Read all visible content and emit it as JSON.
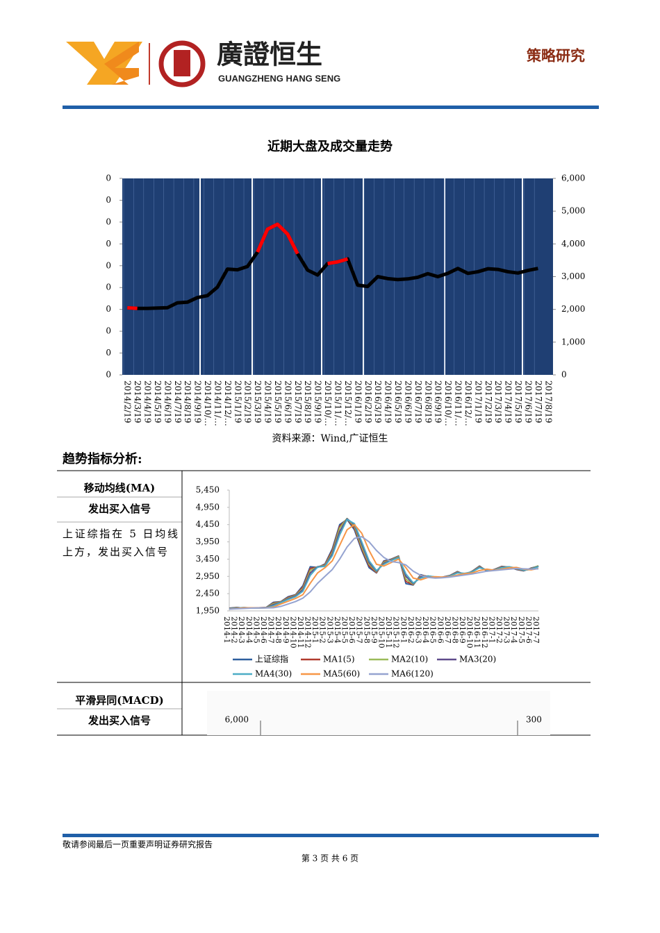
{
  "header": {
    "company_cn": "廣證恒生",
    "company_en": "GUANGZHENG HANG SENG",
    "section": "策略研究"
  },
  "chart_data": [
    {
      "type": "line",
      "title": "近期大盘及成交量走势",
      "categories": [
        "2014/2/19",
        "2014/3/19",
        "2014/4/19",
        "2014/5/19",
        "2014/6/19",
        "2014/7/19",
        "2014/8/19",
        "2014/9/19",
        "2014/10/…",
        "2014/11/…",
        "2014/12/…",
        "2015/1/19",
        "2015/2/19",
        "2015/3/19",
        "2015/4/19",
        "2015/5/19",
        "2015/6/19",
        "2015/7/19",
        "2015/8/19",
        "2015/9/19",
        "2015/10/…",
        "2015/11/…",
        "2015/12/…",
        "2016/1/19",
        "2016/2/19",
        "2016/3/19",
        "2016/4/19",
        "2016/5/19",
        "2016/6/19",
        "2016/7/19",
        "2016/8/19",
        "2016/9/19",
        "2016/10/…",
        "2016/11/…",
        "2016/12/…",
        "2017/1/19",
        "2017/2/19",
        "2017/3/19",
        "2017/4/19",
        "2017/5/19",
        "2017/6/19",
        "2017/7/19",
        "2017/8/19"
      ],
      "series": [
        {
          "color": "#000000",
          "axis": "y2",
          "values": [
            2050,
            2030,
            2030,
            2040,
            2050,
            2200,
            2220,
            2360,
            2420,
            2680,
            3230,
            3210,
            3310,
            3750,
            4450,
            4600,
            4300,
            3700,
            3200,
            3050,
            3400,
            3450,
            3540,
            2740,
            2700,
            3000,
            2940,
            2910,
            2930,
            2980,
            3090,
            3000,
            3100,
            3250,
            3100,
            3150,
            3240,
            3220,
            3150,
            3110,
            3190,
            3250,
            null
          ]
        },
        {
          "color": "#ff0000",
          "axis": "y2",
          "values": [
            2050,
            2030,
            null,
            null,
            null,
            null,
            null,
            null,
            null,
            null,
            null,
            null,
            null,
            3750,
            4450,
            4600,
            4300,
            3700,
            null,
            null,
            3400,
            3450,
            3540,
            null,
            null,
            null,
            null,
            null,
            null,
            null,
            null,
            null,
            null,
            null,
            null,
            null,
            null,
            null,
            null,
            null,
            null,
            null,
            null
          ]
        }
      ],
      "ylim": [
        0,
        9
      ],
      "yticks": [
        {
          "value": 0,
          "label": "0"
        },
        {
          "value": 1,
          "label": "0"
        },
        {
          "value": 2,
          "label": "0"
        },
        {
          "value": 3,
          "label": "0"
        },
        {
          "value": 4,
          "label": "0"
        },
        {
          "value": 5,
          "label": "0"
        },
        {
          "value": 6,
          "label": "0"
        },
        {
          "value": 7,
          "label": "0"
        },
        {
          "value": 8,
          "label": "0"
        },
        {
          "value": 9,
          "label": "0"
        }
      ],
      "y2lim": [
        0,
        6000
      ],
      "y2ticks": [
        0,
        {
          "value": 1000,
          "label": "1,000"
        },
        {
          "value": 2000,
          "label": "2,000"
        },
        {
          "value": 3000,
          "label": "3,000"
        },
        {
          "value": 4000,
          "label": "4,000"
        },
        {
          "value": 5000,
          "label": "5,000"
        },
        {
          "value": 6000,
          "label": "6,000"
        }
      ],
      "background": "#1f3f73"
    },
    {
      "type": "line",
      "categories": [
        "2014-1",
        "2014-2",
        "2014-3",
        "2014-4",
        "2014-5",
        "2014-6",
        "2014-7",
        "2014-8",
        "2014-9",
        "2014-10",
        "2014-11",
        "2014-12",
        "2015-1",
        "2015-2",
        "2015-3",
        "2015-4",
        "2015-5",
        "2015-6",
        "2015-7",
        "2015-8",
        "2015-9",
        "2015-10",
        "2015-11",
        "2015-12",
        "2016-1",
        "2016-2",
        "2016-3",
        "2016-4",
        "2016-5",
        "2016-6",
        "2016-7",
        "2016-8",
        "2016-9",
        "2016-10",
        "2016-11",
        "2016-12",
        "2017-1",
        "2017-2",
        "2017-3",
        "2017-4",
        "2017-5",
        "2017-6",
        "2017-7"
      ],
      "series": [
        {
          "name": "上证综指",
          "color": "#2e5f9e",
          "values": [
            2030,
            2050,
            2030,
            2030,
            2040,
            2050,
            2200,
            2220,
            2360,
            2420,
            2680,
            3230,
            3210,
            3310,
            3750,
            4450,
            4600,
            4300,
            3700,
            3200,
            3050,
            3400,
            3450,
            3540,
            2740,
            2700,
            3000,
            2940,
            2910,
            2930,
            2980,
            3090,
            3000,
            3100,
            3250,
            3100,
            3150,
            3240,
            3220,
            3150,
            3110,
            3190,
            3250
          ]
        },
        {
          "name": "MA1(5)",
          "color": "#b03a2e",
          "values": [
            2025,
            2045,
            2035,
            2030,
            2040,
            2045,
            2180,
            2215,
            2340,
            2410,
            2640,
            3180,
            3220,
            3290,
            3700,
            4400,
            4620,
            4350,
            3750,
            3250,
            3060,
            3380,
            3440,
            3530,
            2800,
            2710,
            2980,
            2950,
            2920,
            2925,
            2975,
            3080,
            3010,
            3095,
            3240,
            3110,
            3145,
            3230,
            3225,
            3160,
            3115,
            3180,
            3240
          ]
        },
        {
          "name": "MA2(10)",
          "color": "#9bbb59",
          "values": [
            2020,
            2040,
            2040,
            2030,
            2035,
            2045,
            2160,
            2210,
            2320,
            2400,
            2600,
            3120,
            3230,
            3270,
            3650,
            4350,
            4630,
            4400,
            3800,
            3300,
            3080,
            3360,
            3430,
            3520,
            2870,
            2720,
            2960,
            2955,
            2925,
            2920,
            2970,
            3070,
            3020,
            3090,
            3230,
            3120,
            3140,
            3220,
            3225,
            3170,
            3120,
            3170,
            3260
          ]
        },
        {
          "name": "MA3(20)",
          "color": "#5f4b8b",
          "values": [
            2015,
            2035,
            2045,
            2032,
            2032,
            2042,
            2130,
            2200,
            2300,
            2380,
            2560,
            3050,
            3230,
            3250,
            3600,
            4250,
            4620,
            4450,
            3880,
            3350,
            3100,
            3330,
            3420,
            3500,
            2950,
            2740,
            2930,
            2960,
            2930,
            2918,
            2965,
            3060,
            3030,
            3085,
            3215,
            3130,
            3135,
            3210,
            3228,
            3180,
            3125,
            3160,
            3240
          ]
        },
        {
          "name": "MA4(30)",
          "color": "#4bacc6",
          "values": [
            2010,
            2030,
            2048,
            2035,
            2030,
            2040,
            2100,
            2190,
            2280,
            2360,
            2520,
            2980,
            3220,
            3240,
            3550,
            4150,
            4600,
            4480,
            3950,
            3400,
            3120,
            3300,
            3410,
            3490,
            3020,
            2760,
            2900,
            2960,
            2935,
            2917,
            2960,
            3050,
            3040,
            3080,
            3200,
            3140,
            3130,
            3200,
            3230,
            3190,
            3130,
            3150,
            3230
          ]
        },
        {
          "name": "MA5(60)",
          "color": "#f79646",
          "values": [
            2000,
            2020,
            2040,
            2040,
            2035,
            2038,
            2060,
            2150,
            2230,
            2310,
            2420,
            2750,
            3050,
            3200,
            3400,
            3850,
            4300,
            4450,
            4200,
            3700,
            3300,
            3250,
            3350,
            3450,
            3200,
            2900,
            2850,
            2920,
            2940,
            2930,
            2940,
            2990,
            3030,
            3050,
            3120,
            3160,
            3130,
            3160,
            3200,
            3210,
            3160,
            3140,
            3180
          ]
        },
        {
          "name": "MA6(120)",
          "color": "#95a3d0",
          "values": [
            2000,
            2010,
            2020,
            2030,
            2035,
            2035,
            2040,
            2080,
            2150,
            2220,
            2320,
            2500,
            2750,
            2950,
            3150,
            3450,
            3800,
            4050,
            4100,
            3950,
            3700,
            3500,
            3380,
            3350,
            3280,
            3100,
            2980,
            2920,
            2900,
            2910,
            2930,
            2960,
            2990,
            3020,
            3060,
            3100,
            3120,
            3140,
            3160,
            3180,
            3170,
            3160,
            3170
          ]
        }
      ],
      "ylim": [
        1950,
        5450
      ],
      "yticks": [
        {
          "value": 1950,
          "label": "1,950"
        },
        {
          "value": 2450,
          "label": "2,450"
        },
        {
          "value": 2950,
          "label": "2,950"
        },
        {
          "value": 3450,
          "label": "3,450"
        },
        {
          "value": 3950,
          "label": "3,950"
        },
        {
          "value": 4450,
          "label": "4,450"
        },
        {
          "value": 4950,
          "label": "4,950"
        },
        {
          "value": 5450,
          "label": "5,450"
        }
      ]
    }
  ],
  "source": "资料来源：Wind,广证恒生",
  "heading": "趋势指标分析:",
  "table": {
    "rows": [
      [
        "移动均线(MA)",
        "发出买入信号",
        "上证综指在 5 日均线上方，发出买入信号"
      ],
      [
        "平滑异同(MACD)",
        "发出买入信号"
      ]
    ]
  },
  "macd_axis_labels": [
    "6,000",
    "300"
  ],
  "footer": {
    "disclaimer": "敬请参阅最后一页重要声明证券研究报告",
    "page": "第 3 页 共 6 页"
  }
}
